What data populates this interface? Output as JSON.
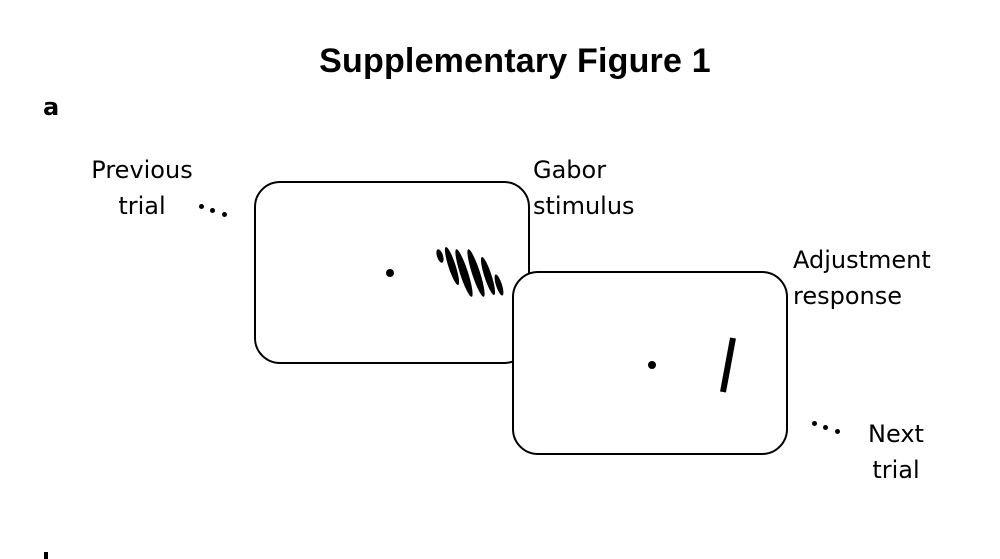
{
  "figure": {
    "title": "Supplementary Figure 1",
    "panel_label": "a"
  },
  "labels": {
    "previous_trial": [
      "Previous",
      "trial"
    ],
    "gabor_stimulus": [
      "Gabor",
      "stimulus"
    ],
    "adjustment_response": [
      "Adjustment",
      "response"
    ],
    "next_trial": [
      "Next",
      "trial"
    ]
  },
  "icons": {
    "ellipsis": "ellipsis-icon",
    "fixation": "fixation-dot-icon",
    "gabor": "gabor-patch-icon",
    "response_bar": "response-bar-icon"
  },
  "colors": {
    "ink": "#000000",
    "background": "#ffffff"
  }
}
